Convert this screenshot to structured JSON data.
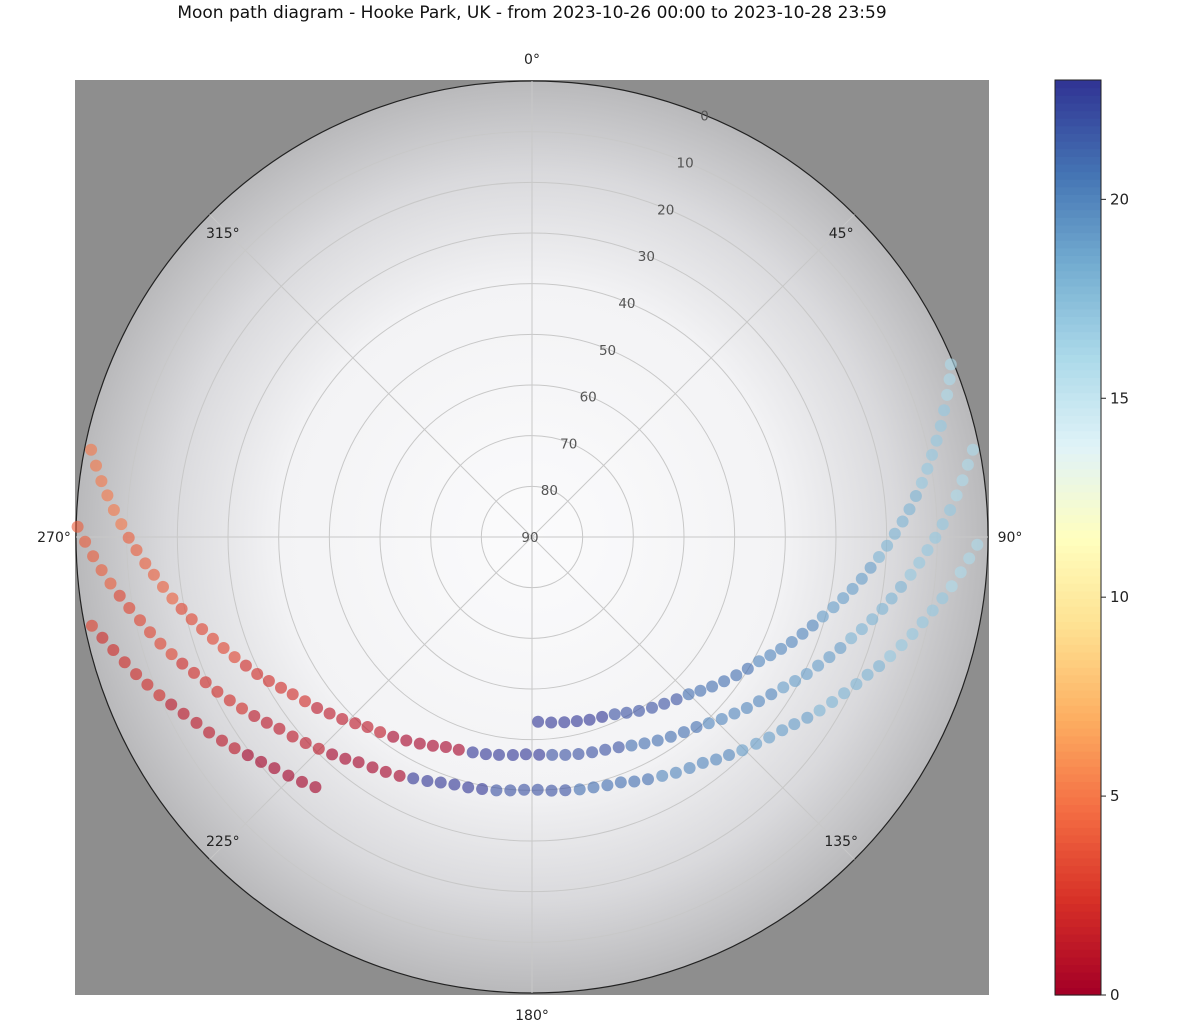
{
  "title": "Moon path diagram - Hooke Park, UK - from 2023-10-26 00:00 to 2023-10-28 23:59",
  "chart_data": {
    "type": "scatter",
    "projection": "polar",
    "title": "Moon path diagram - Hooke Park, UK - from 2023-10-26 00:00 to 2023-10-28 23:59",
    "theta": "azimuth (deg), 0 at top, clockwise",
    "r": "altitude (deg), 0 at rim, 90 at centre",
    "theta_ticks": [
      "0°",
      "45°",
      "90°",
      "135°",
      "180°",
      "225°",
      "270°",
      "315°"
    ],
    "theta_tick_values": [
      0,
      45,
      90,
      135,
      180,
      225,
      270,
      315
    ],
    "r_ticks": [
      "0",
      "10",
      "20",
      "30",
      "40",
      "50",
      "60",
      "70",
      "80",
      "90"
    ],
    "r_tick_values": [
      0,
      10,
      20,
      30,
      40,
      50,
      60,
      70,
      80,
      90
    ],
    "grid": true,
    "background": "fisheye sky photo with trees",
    "colormap": "RdYlBu",
    "colors": [
      "#a50026",
      "#d73027",
      "#f46d43",
      "#fdae61",
      "#fee090",
      "#ffffbf",
      "#e0f3f8",
      "#abd9e9",
      "#74add1",
      "#4575b4",
      "#313695"
    ],
    "color_range": [
      0,
      23
    ],
    "colorbar_ticks": [
      "0",
      "5",
      "10",
      "15",
      "20"
    ],
    "colorbar_tick_values": [
      0,
      5,
      10,
      15,
      20
    ],
    "point_fields": [
      "azimuth",
      "altitude",
      "hour"
    ],
    "series": [
      {
        "points": [
          [
            220.9,
            24.7,
            0
          ],
          [
            223.2,
            23.7,
            0
          ],
          [
            225.6,
            22.7,
            0
          ],
          [
            228.1,
            21.7,
            0
          ],
          [
            230.3,
            20.5,
            0
          ],
          [
            232.5,
            19.3,
            0
          ],
          [
            234.6,
            18.0,
            1
          ],
          [
            236.7,
            16.8,
            1
          ],
          [
            238.8,
            15.5,
            1
          ],
          [
            241.0,
            14.3,
            1
          ],
          [
            243.1,
            12.9,
            1
          ],
          [
            245.1,
            11.5,
            1
          ],
          [
            247.0,
            10.1,
            2
          ],
          [
            249.0,
            8.7,
            2
          ],
          [
            250.9,
            7.3,
            2
          ],
          [
            252.9,
            5.9,
            2
          ],
          [
            254.9,
            4.4,
            2
          ],
          [
            256.8,
            2.9,
            2
          ],
          [
            258.6,
            1.4,
            3
          ]
        ]
      },
      {
        "points": [
          [
            91.0,
            2.1,
            16
          ],
          [
            92.8,
            3.6,
            16
          ],
          [
            94.7,
            5.1,
            16
          ],
          [
            96.7,
            6.6,
            16
          ],
          [
            98.5,
            8.1,
            17
          ],
          [
            100.4,
            9.6,
            17
          ],
          [
            102.3,
            11.1,
            17
          ],
          [
            104.3,
            12.5,
            17
          ],
          [
            106.3,
            14.0,
            17
          ],
          [
            108.4,
            15.5,
            17
          ],
          [
            110.4,
            16.9,
            18
          ],
          [
            112.3,
            18.4,
            18
          ],
          [
            114.4,
            19.7,
            18
          ],
          [
            116.6,
            21.1,
            18
          ],
          [
            118.8,
            22.4,
            18
          ],
          [
            121.1,
            23.7,
            18
          ],
          [
            123.3,
            25.0,
            19
          ],
          [
            125.5,
            26.4,
            19
          ],
          [
            127.7,
            27.6,
            19
          ],
          [
            130.2,
            28.7,
            19
          ],
          [
            132.7,
            29.8,
            19
          ],
          [
            135.4,
            30.9,
            19
          ],
          [
            137.9,
            32.0,
            20
          ],
          [
            140.4,
            33.0,
            20
          ],
          [
            142.9,
            34.1,
            20
          ],
          [
            145.7,
            34.8,
            20
          ],
          [
            148.6,
            35.5,
            20
          ],
          [
            151.4,
            36.3,
            20
          ],
          [
            154.4,
            37.0,
            21
          ],
          [
            157.3,
            37.7,
            21
          ],
          [
            160.1,
            38.5,
            21
          ],
          [
            163.1,
            38.8,
            21
          ],
          [
            166.2,
            39.1,
            21
          ],
          [
            169.3,
            39.3,
            21
          ],
          [
            172.5,
            39.6,
            22
          ],
          [
            175.6,
            39.8,
            22
          ],
          [
            178.7,
            40.1,
            22
          ],
          [
            181.8,
            40.1,
            22
          ],
          [
            184.9,
            39.8,
            22
          ],
          [
            188.0,
            39.5,
            22
          ],
          [
            191.2,
            39.3,
            23
          ],
          [
            194.3,
            39.0,
            23
          ],
          [
            197.4,
            38.8,
            23
          ],
          [
            200.4,
            38.3,
            23
          ],
          [
            203.2,
            37.6,
            23
          ],
          [
            206.2,
            36.9,
            23
          ]
        ]
      },
      {
        "points": [
          [
            209.0,
            36.1,
            0
          ],
          [
            211.9,
            35.4,
            0
          ],
          [
            214.7,
            34.7,
            0
          ],
          [
            217.6,
            33.9,
            0
          ],
          [
            220.1,
            32.8,
            0
          ],
          [
            222.6,
            31.7,
            0
          ],
          [
            225.2,
            30.7,
            1
          ],
          [
            227.7,
            29.6,
            1
          ],
          [
            230.2,
            28.5,
            1
          ],
          [
            232.8,
            27.4,
            1
          ],
          [
            235.0,
            26.1,
            1
          ],
          [
            237.2,
            24.8,
            1
          ],
          [
            239.4,
            23.5,
            2
          ],
          [
            241.6,
            22.2,
            2
          ],
          [
            243.8,
            20.8,
            2
          ],
          [
            246.0,
            19.5,
            2
          ],
          [
            248.1,
            18.1,
            2
          ],
          [
            250.1,
            16.6,
            2
          ],
          [
            252.0,
            15.2,
            3
          ],
          [
            254.0,
            13.7,
            3
          ],
          [
            256.0,
            12.3,
            3
          ],
          [
            258.0,
            10.9,
            3
          ],
          [
            260.0,
            9.3,
            3
          ],
          [
            261.9,
            7.8,
            3
          ],
          [
            263.7,
            6.3,
            4
          ],
          [
            265.6,
            4.8,
            4
          ],
          [
            267.5,
            3.3,
            4
          ],
          [
            269.4,
            1.8,
            4
          ],
          [
            271.3,
            0.3,
            4
          ]
        ]
      },
      {
        "points": [
          [
            78.8,
            1.3,
            16
          ],
          [
            80.6,
            2.8,
            16
          ],
          [
            82.5,
            4.3,
            16
          ],
          [
            84.4,
            5.8,
            16
          ],
          [
            86.3,
            7.3,
            17
          ],
          [
            88.2,
            8.9,
            17
          ],
          [
            90.1,
            10.4,
            17
          ],
          [
            91.9,
            11.9,
            17
          ],
          [
            93.8,
            13.4,
            17
          ],
          [
            95.7,
            14.9,
            17
          ],
          [
            97.7,
            16.5,
            18
          ],
          [
            99.7,
            18.0,
            18
          ],
          [
            101.6,
            19.4,
            18
          ],
          [
            103.6,
            20.9,
            18
          ],
          [
            105.6,
            22.4,
            18
          ],
          [
            107.6,
            23.9,
            18
          ],
          [
            109.8,
            25.3,
            19
          ],
          [
            112.0,
            26.7,
            19
          ],
          [
            114.2,
            28.1,
            19
          ],
          [
            116.5,
            29.4,
            19
          ],
          [
            118.7,
            30.8,
            19
          ],
          [
            120.9,
            32.2,
            19
          ],
          [
            123.3,
            33.5,
            20
          ],
          [
            125.9,
            34.7,
            20
          ],
          [
            128.5,
            35.8,
            20
          ],
          [
            131.1,
            37.0,
            20
          ],
          [
            133.8,
            38.1,
            20
          ],
          [
            136.5,
            39.3,
            20
          ],
          [
            139.1,
            40.4,
            21
          ],
          [
            142.1,
            41.2,
            21
          ],
          [
            145.2,
            42.0,
            21
          ],
          [
            148.3,
            42.8,
            21
          ],
          [
            151.4,
            43.6,
            21
          ],
          [
            154.5,
            44.4,
            21
          ],
          [
            157.6,
            45.1,
            22
          ],
          [
            161.0,
            45.6,
            22
          ],
          [
            164.4,
            45.9,
            22
          ],
          [
            167.9,
            46.2,
            22
          ],
          [
            171.3,
            46.5,
            22
          ],
          [
            174.7,
            46.8,
            22
          ],
          [
            178.1,
            47.0,
            23
          ],
          [
            181.6,
            47.1,
            23
          ],
          [
            185.0,
            46.8,
            23
          ],
          [
            188.6,
            46.5,
            23
          ],
          [
            192.0,
            46.2,
            23
          ],
          [
            195.4,
            45.9,
            23
          ]
        ]
      },
      {
        "points": [
          [
            199.0,
            45.6,
            0
          ],
          [
            202.3,
            45.2,
            0
          ],
          [
            205.4,
            44.4,
            0
          ],
          [
            208.5,
            43.6,
            0
          ],
          [
            211.7,
            42.8,
            0
          ],
          [
            214.8,
            42.0,
            0
          ],
          [
            217.9,
            41.2,
            1
          ],
          [
            220.9,
            40.4,
            1
          ],
          [
            223.5,
            39.3,
            1
          ],
          [
            226.2,
            38.1,
            1
          ],
          [
            228.9,
            37.0,
            1
          ],
          [
            231.5,
            35.8,
            1
          ],
          [
            234.1,
            34.7,
            2
          ],
          [
            236.7,
            33.5,
            2
          ],
          [
            239.0,
            32.2,
            2
          ],
          [
            241.3,
            30.8,
            2
          ],
          [
            243.5,
            29.4,
            2
          ],
          [
            245.8,
            28.1,
            2
          ],
          [
            248.0,
            26.7,
            3
          ],
          [
            250.2,
            25.3,
            3
          ],
          [
            252.3,
            23.9,
            3
          ],
          [
            254.4,
            22.4,
            3
          ],
          [
            256.4,
            20.9,
            3
          ],
          [
            258.4,
            19.4,
            3
          ],
          [
            260.3,
            18.0,
            4
          ],
          [
            262.3,
            16.5,
            4
          ],
          [
            264.3,
            15.0,
            4
          ],
          [
            266.1,
            13.5,
            4
          ],
          [
            268.1,
            11.9,
            4
          ],
          [
            269.9,
            10.4,
            4
          ],
          [
            271.8,
            8.9,
            5
          ],
          [
            273.7,
            7.3,
            5
          ],
          [
            275.6,
            5.8,
            5
          ],
          [
            277.4,
            4.3,
            5
          ],
          [
            279.3,
            2.8,
            5
          ],
          [
            281.2,
            1.3,
            5
          ]
        ]
      },
      {
        "points": [
          [
            67.6,
            0.6,
            16
          ],
          [
            69.3,
            1.9,
            16
          ],
          [
            71.1,
            3.4,
            16
          ],
          [
            72.9,
            4.9,
            17
          ],
          [
            74.8,
            6.4,
            17
          ],
          [
            76.6,
            7.9,
            17
          ],
          [
            78.4,
            9.4,
            17
          ],
          [
            80.2,
            10.8,
            17
          ],
          [
            82.1,
            12.3,
            17
          ],
          [
            83.9,
            13.8,
            18
          ],
          [
            85.8,
            15.3,
            18
          ],
          [
            87.6,
            16.8,
            18
          ],
          [
            89.5,
            18.4,
            18
          ],
          [
            91.4,
            19.9,
            18
          ],
          [
            93.3,
            21.4,
            18
          ],
          [
            95.2,
            22.9,
            19
          ],
          [
            97.2,
            24.4,
            19
          ],
          [
            99.2,
            25.9,
            19
          ],
          [
            101.1,
            27.4,
            19
          ],
          [
            103.1,
            28.9,
            19
          ],
          [
            105.3,
            30.5,
            19
          ],
          [
            107.5,
            31.9,
            20
          ],
          [
            109.7,
            33.3,
            20
          ],
          [
            112.0,
            34.7,
            20
          ],
          [
            114.2,
            36.1,
            20
          ],
          [
            116.4,
            37.5,
            20
          ],
          [
            118.7,
            38.9,
            20
          ],
          [
            121.4,
            40.1,
            21
          ],
          [
            124.1,
            41.3,
            21
          ],
          [
            126.9,
            42.6,
            21
          ],
          [
            129.7,
            43.8,
            21
          ],
          [
            132.4,
            45.0,
            21
          ],
          [
            135.1,
            46.2,
            21
          ],
          [
            138.3,
            47.1,
            22
          ],
          [
            141.6,
            48.0,
            22
          ],
          [
            144.9,
            48.8,
            22
          ],
          [
            148.4,
            49.7,
            22
          ],
          [
            151.7,
            50.6,
            22
          ],
          [
            155.0,
            51.4,
            22
          ],
          [
            158.7,
            51.9,
            23
          ],
          [
            162.5,
            52.2,
            23
          ],
          [
            166.3,
            52.6,
            23
          ],
          [
            170.1,
            52.9,
            23
          ],
          [
            174.1,
            53.2,
            23
          ],
          [
            178.1,
            53.5,
            23
          ]
        ]
      }
    ]
  }
}
